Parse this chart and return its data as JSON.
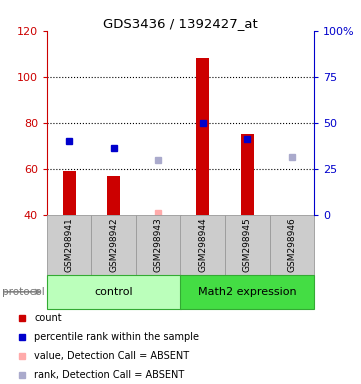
{
  "title": "GDS3436 / 1392427_at",
  "samples": [
    "GSM298941",
    "GSM298942",
    "GSM298943",
    "GSM298944",
    "GSM298945",
    "GSM298946"
  ],
  "bar_values": [
    59,
    57,
    null,
    108,
    75,
    null
  ],
  "bar_color": "#cc0000",
  "blue_square_values": [
    72,
    69,
    null,
    80,
    73,
    null
  ],
  "pink_square_values": [
    null,
    null,
    41,
    null,
    null,
    null
  ],
  "lavender_square_values": [
    null,
    null,
    64,
    null,
    null,
    65
  ],
  "blue_square_color": "#0000cc",
  "pink_square_color": "#ffaaaa",
  "lavender_square_color": "#aaaacc",
  "ylim_left": [
    40,
    120
  ],
  "ylim_right": [
    0,
    100
  ],
  "yticks_left": [
    40,
    60,
    80,
    100,
    120
  ],
  "yticks_right": [
    0,
    25,
    50,
    75,
    100
  ],
  "ytick_labels_right": [
    "0",
    "25",
    "50",
    "75",
    "100%"
  ],
  "dotted_lines": [
    60,
    80,
    100
  ],
  "left_tick_color": "#cc0000",
  "right_tick_color": "#0000cc",
  "protocol_label": "protocol",
  "control_label": "control",
  "math2_label": "Math2 expression",
  "control_color": "#bbffbb",
  "math2_color": "#44dd44",
  "legend_items": [
    {
      "color": "#cc0000",
      "label": "count"
    },
    {
      "color": "#0000cc",
      "label": "percentile rank within the sample"
    },
    {
      "color": "#ffaaaa",
      "label": "value, Detection Call = ABSENT"
    },
    {
      "color": "#aaaacc",
      "label": "rank, Detection Call = ABSENT"
    }
  ]
}
